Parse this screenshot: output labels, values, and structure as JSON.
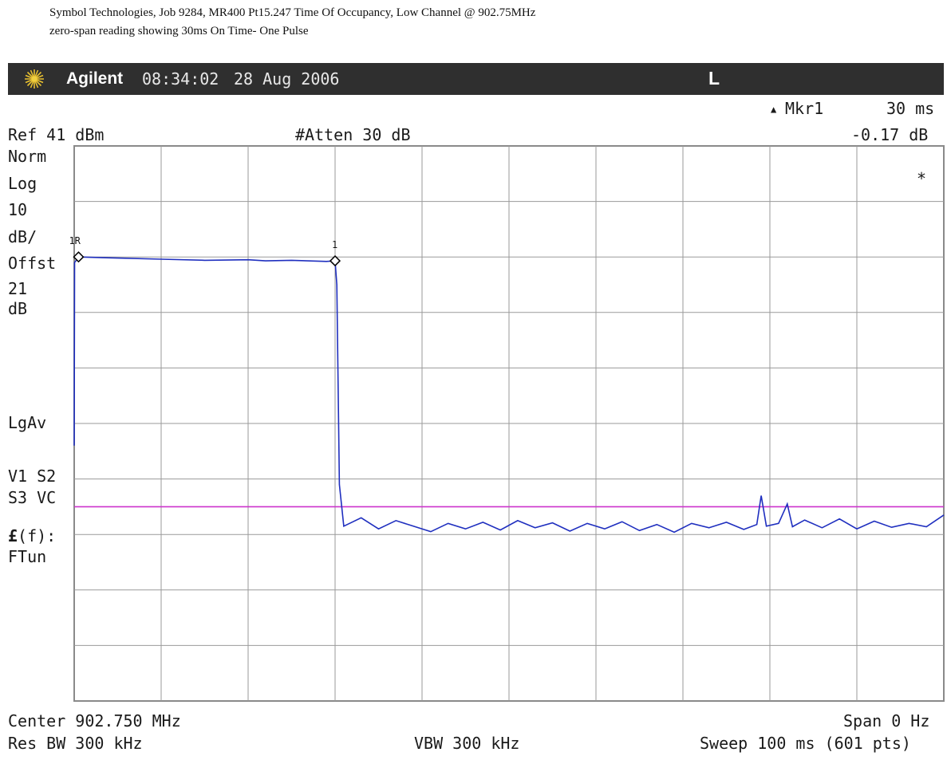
{
  "caption": {
    "line1": "Symbol Technologies,  Job 9284, MR400   Pt15.247 Time Of Occupancy,  Low Channel @ 902.75MHz",
    "line2": "zero-span reading showing 30ms On Time- One Pulse"
  },
  "header": {
    "brand": "Agilent",
    "time": "08:34:02",
    "date": "28 Aug 2006",
    "flag": "L",
    "logo_icon": "agilent-starburst-icon",
    "background": "#2f2f2f"
  },
  "marker": {
    "label": "Mkr1",
    "delta_time": "30 ms",
    "delta_level": "-0.17 dB",
    "ref_label": "1R",
    "marker_label": "1"
  },
  "settings": {
    "ref": "Ref 41 dBm",
    "atten": "#Atten 30 dB",
    "norm": "Norm",
    "log": "Log",
    "scale_value": "10",
    "scale_unit": "dB/",
    "offset_label": "Offst",
    "offset_value": "21",
    "offset_unit": "dB",
    "avg": "LgAv",
    "v1s2": "V1  S2",
    "s3vc": "S3  VC",
    "func_symbol": "£",
    "func_arg": "(f):",
    "ftun": "FTun",
    "asterisk": "*"
  },
  "footer": {
    "center": "Center 902.750 MHz",
    "span": "Span 0 Hz",
    "res_bw": "Res BW 300 kHz",
    "vbw": "VBW 300 kHz",
    "sweep": "Sweep 100 ms (601 pts)"
  },
  "chart_data": {
    "type": "line",
    "x_unit": "ms",
    "y_unit": "dBm",
    "xlim": [
      0,
      100
    ],
    "ylim": [
      -59,
      41
    ],
    "grid": true,
    "grid_divisions": {
      "x": 10,
      "y": 10
    },
    "threshold_line": {
      "value": -24,
      "color": "#cc33cc"
    },
    "series": [
      {
        "color": "#1f2fbf",
        "points": [
          [
            0,
            -13
          ],
          [
            0.05,
            20
          ],
          [
            0.5,
            21
          ],
          [
            5,
            20.8
          ],
          [
            10,
            20.6
          ],
          [
            15,
            20.4
          ],
          [
            20,
            20.5
          ],
          [
            22,
            20.3
          ],
          [
            25,
            20.4
          ],
          [
            29,
            20.2
          ],
          [
            30,
            20.3
          ],
          [
            30.2,
            16
          ],
          [
            30.5,
            -20
          ],
          [
            31,
            -27.5
          ],
          [
            33,
            -26
          ],
          [
            35,
            -28
          ],
          [
            37,
            -26.5
          ],
          [
            39,
            -27.5
          ],
          [
            41,
            -28.5
          ],
          [
            43,
            -27
          ],
          [
            45,
            -28
          ],
          [
            47,
            -26.8
          ],
          [
            49,
            -28.2
          ],
          [
            51,
            -26.5
          ],
          [
            53,
            -27.8
          ],
          [
            55,
            -26.9
          ],
          [
            57,
            -28.4
          ],
          [
            59,
            -27
          ],
          [
            61,
            -28
          ],
          [
            63,
            -26.7
          ],
          [
            65,
            -28.3
          ],
          [
            67,
            -27.2
          ],
          [
            69,
            -28.6
          ],
          [
            71,
            -27
          ],
          [
            73,
            -27.8
          ],
          [
            75,
            -26.8
          ],
          [
            77,
            -28.1
          ],
          [
            78.5,
            -27.2
          ],
          [
            79,
            -22
          ],
          [
            79.6,
            -27.5
          ],
          [
            81,
            -27
          ],
          [
            82,
            -23.5
          ],
          [
            82.6,
            -27.6
          ],
          [
            84,
            -26.4
          ],
          [
            86,
            -27.8
          ],
          [
            88,
            -26.2
          ],
          [
            90,
            -28
          ],
          [
            92,
            -26.6
          ],
          [
            94,
            -27.7
          ],
          [
            96,
            -27
          ],
          [
            98,
            -27.6
          ],
          [
            100,
            -25.5
          ]
        ]
      }
    ]
  }
}
